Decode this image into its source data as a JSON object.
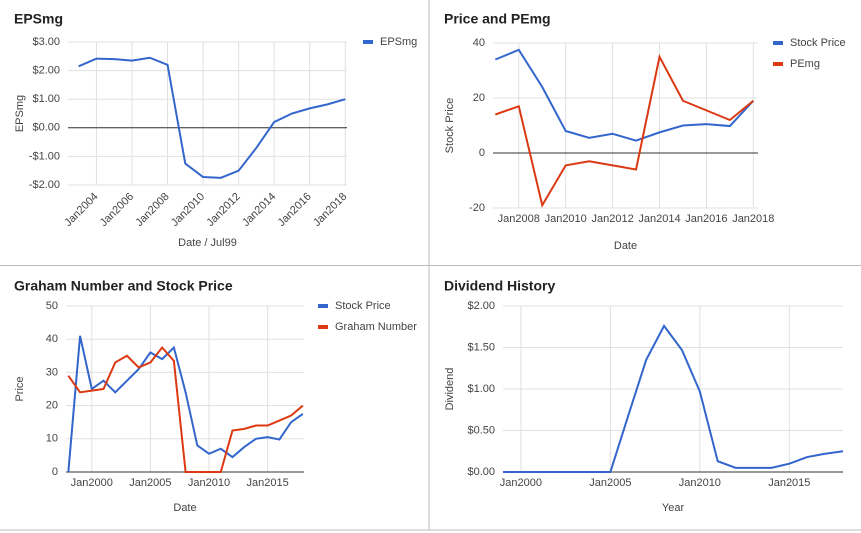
{
  "chart_data": [
    {
      "type": "line",
      "title": "EPSmg",
      "x_label": "Date / Jul99",
      "y_label": "EPSmg",
      "grid": true,
      "legend": "right",
      "x": [
        2003,
        2004,
        2005,
        2006,
        2007,
        2008,
        2009,
        2010,
        2011,
        2012,
        2013,
        2014,
        2015,
        2016,
        2017,
        2018
      ],
      "series": [
        {
          "name": "EPSmg",
          "color": "#3366cc",
          "values": [
            2.15,
            2.42,
            2.4,
            2.35,
            2.45,
            2.2,
            -1.25,
            -1.72,
            -1.75,
            -1.5,
            -0.7,
            0.2,
            0.5,
            0.68,
            0.82,
            1.0
          ]
        }
      ],
      "xlim": [
        2002.4,
        2018.1
      ],
      "xticks": [
        {
          "value": 2004,
          "label": "Jan2004"
        },
        {
          "value": 2006,
          "label": "Jan2006"
        },
        {
          "value": 2008,
          "label": "Jan2008"
        },
        {
          "value": 2010,
          "label": "Jan2010"
        },
        {
          "value": 2012,
          "label": "Jan2012"
        },
        {
          "value": 2014,
          "label": "Jan2014"
        },
        {
          "value": 2016,
          "label": "Jan2016"
        },
        {
          "value": 2018,
          "label": "Jan2018"
        }
      ],
      "ylim": [
        -2,
        3
      ],
      "yticks": [
        {
          "value": 3,
          "label": "$3.00"
        },
        {
          "value": 2,
          "label": "$2.00"
        },
        {
          "value": 1,
          "label": "$1.00"
        },
        {
          "value": 0,
          "label": "$0.00"
        },
        {
          "value": -1,
          "label": "-$1.00"
        },
        {
          "value": -2,
          "label": "-$2.00"
        }
      ]
    },
    {
      "type": "line",
      "title": "Price and PEmg",
      "x_label": "Date",
      "y_label": "Stock Price",
      "grid": true,
      "legend": "right",
      "x": [
        2007,
        2008,
        2009,
        2010,
        2011,
        2012,
        2013,
        2014,
        2015,
        2016,
        2017,
        2018
      ],
      "series": [
        {
          "name": "Stock Price",
          "color": "#3366cc",
          "values": [
            34,
            37.5,
            24,
            8,
            5.5,
            7,
            4.5,
            7.5,
            10,
            10.5,
            9.8,
            19
          ]
        },
        {
          "name": "PEmg",
          "color": "#dc3912",
          "values": [
            14,
            17,
            -19,
            -4.5,
            -3,
            -4.5,
            -6,
            35,
            19,
            15.5,
            12,
            19
          ]
        }
      ],
      "xlim": [
        2006.9,
        2018.2
      ],
      "xticks": [
        {
          "value": 2008,
          "label": "Jan2008"
        },
        {
          "value": 2010,
          "label": "Jan2010"
        },
        {
          "value": 2012,
          "label": "Jan2012"
        },
        {
          "value": 2014,
          "label": "Jan2014"
        },
        {
          "value": 2016,
          "label": "Jan2016"
        },
        {
          "value": 2018,
          "label": "Jan2018"
        }
      ],
      "ylim": [
        -20,
        40
      ],
      "yticks": [
        -20,
        0,
        20,
        40
      ]
    },
    {
      "type": "line",
      "title": "Graham Number and Stock Price",
      "x_label": "Date",
      "y_label": "Price",
      "grid": true,
      "legend": "right",
      "x": [
        1998,
        1999,
        2000,
        2001,
        2002,
        2003,
        2004,
        2005,
        2006,
        2007,
        2008,
        2009,
        2010,
        2011,
        2012,
        2013,
        2014,
        2015,
        2016,
        2017,
        2018
      ],
      "series": [
        {
          "name": "Stock Price",
          "color": "#3366cc",
          "values": [
            0,
            41,
            25,
            27.5,
            24,
            27.5,
            31,
            36,
            34,
            37.5,
            24,
            8,
            5.5,
            7,
            4.5,
            7.5,
            10,
            10.5,
            9.8,
            15,
            17.5
          ]
        },
        {
          "name": "Graham Number",
          "color": "#dc3912",
          "values": [
            29,
            24,
            24.5,
            25,
            33,
            35,
            31.5,
            33,
            37.5,
            33.5,
            0,
            0,
            0,
            0,
            12.5,
            13,
            14,
            14,
            15.5,
            17,
            20
          ]
        }
      ],
      "xlim": [
        1997.8,
        2018.1
      ],
      "xticks": [
        {
          "value": 2000,
          "label": "Jan2000"
        },
        {
          "value": 2005,
          "label": "Jan2005"
        },
        {
          "value": 2010,
          "label": "Jan2010"
        },
        {
          "value": 2015,
          "label": "Jan2015"
        }
      ],
      "ylim": [
        0,
        50
      ],
      "yticks": [
        0,
        10,
        20,
        30,
        40,
        50
      ]
    },
    {
      "type": "line",
      "title": "Dividend History",
      "x_label": "Year",
      "y_label": "Dividend",
      "grid": true,
      "x": [
        1999,
        2000,
        2001,
        2002,
        2003,
        2004,
        2005,
        2006,
        2007,
        2008,
        2009,
        2010,
        2011,
        2012,
        2013,
        2014,
        2015,
        2016,
        2017,
        2018
      ],
      "series": [
        {
          "color": "#3366cc",
          "values": [
            0,
            0,
            0,
            0,
            0,
            0,
            0,
            0.68,
            1.35,
            1.76,
            1.47,
            0.97,
            0.13,
            0.05,
            0.05,
            0.05,
            0.1,
            0.18,
            0.22,
            0.25
          ]
        }
      ],
      "xlim": [
        1999,
        2018
      ],
      "xticks": [
        {
          "value": 2000,
          "label": "Jan2000"
        },
        {
          "value": 2005,
          "label": "Jan2005"
        },
        {
          "value": 2010,
          "label": "Jan2010"
        },
        {
          "value": 2015,
          "label": "Jan2015"
        }
      ],
      "ylim": [
        0,
        2
      ],
      "yticks": [
        {
          "value": 0,
          "label": "$0.00"
        },
        {
          "value": 0.5,
          "label": "$0.50"
        },
        {
          "value": 1,
          "label": "$1.00"
        },
        {
          "value": 1.5,
          "label": "$1.50"
        },
        {
          "value": 2,
          "label": "$2.00"
        }
      ]
    }
  ]
}
